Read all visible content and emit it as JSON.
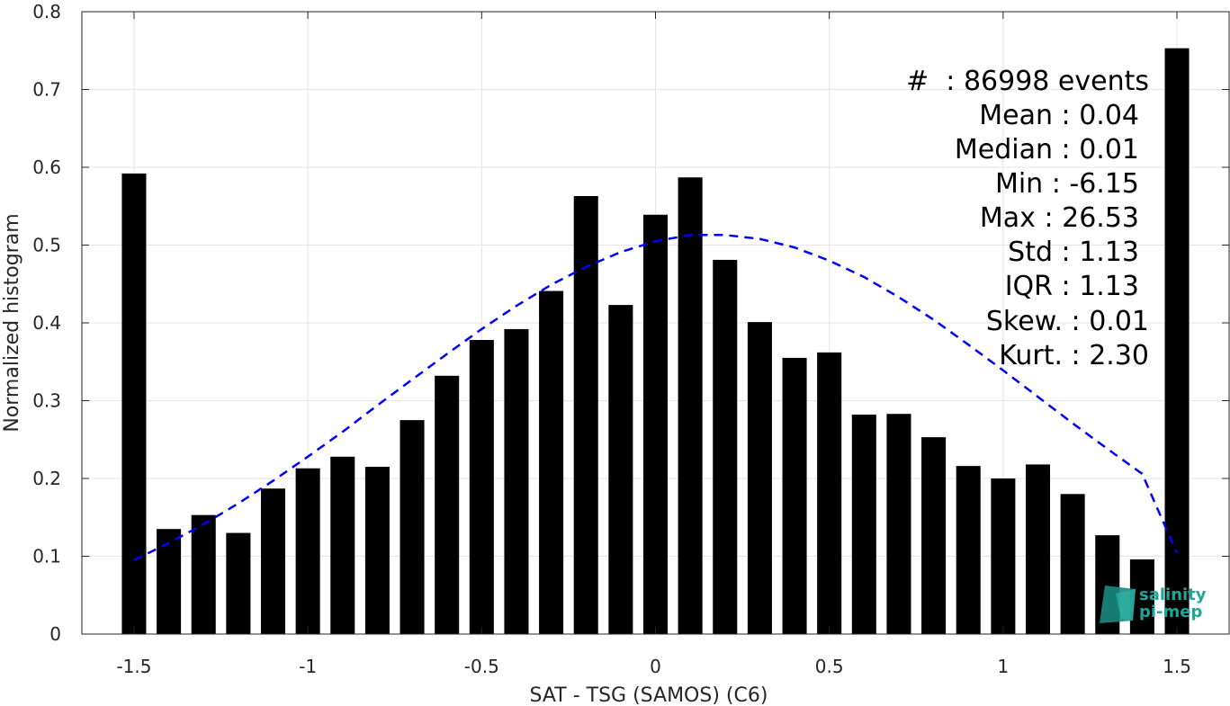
{
  "chart_data": {
    "type": "bar",
    "xlabel": "SAT - TSG (SAMOS) (C6)",
    "ylabel": "Normalized histogram",
    "xlim": [
      -1.65,
      1.65
    ],
    "ylim": [
      0,
      0.8
    ],
    "xticks": [
      -1.5,
      -1,
      -0.5,
      0,
      0.5,
      1,
      1.5
    ],
    "xtick_labels": [
      "-1.5",
      "-1",
      "-0.5",
      "0",
      "0.5",
      "1",
      "1.5"
    ],
    "yticks": [
      0,
      0.1,
      0.2,
      0.3,
      0.4,
      0.5,
      0.6,
      0.7,
      0.8
    ],
    "ytick_labels": [
      "0",
      "0.1",
      "0.2",
      "0.3",
      "0.4",
      "0.5",
      "0.6",
      "0.7",
      "0.8"
    ],
    "grid": true,
    "bar_width": 0.07,
    "bars": {
      "x": [
        -1.5,
        -1.4,
        -1.3,
        -1.2,
        -1.1,
        -1.0,
        -0.9,
        -0.8,
        -0.7,
        -0.6,
        -0.5,
        -0.4,
        -0.3,
        -0.2,
        -0.1,
        0.0,
        0.1,
        0.2,
        0.3,
        0.4,
        0.5,
        0.6,
        0.7,
        0.8,
        0.9,
        1.0,
        1.1,
        1.2,
        1.3,
        1.4,
        1.5
      ],
      "values": [
        0.592,
        0.135,
        0.153,
        0.13,
        0.187,
        0.213,
        0.228,
        0.215,
        0.275,
        0.332,
        0.378,
        0.392,
        0.441,
        0.563,
        0.423,
        0.539,
        0.587,
        0.481,
        0.401,
        0.355,
        0.362,
        0.282,
        0.283,
        0.253,
        0.216,
        0.2,
        0.218,
        0.18,
        0.127,
        0.096,
        0.753
      ]
    },
    "fit_curve": {
      "style": "dashed",
      "color": "#0000ff",
      "x": [
        -1.5,
        -1.4,
        -1.3,
        -1.2,
        -1.1,
        -1.0,
        -0.9,
        -0.8,
        -0.7,
        -0.6,
        -0.5,
        -0.4,
        -0.3,
        -0.2,
        -0.1,
        0.0,
        0.1,
        0.2,
        0.3,
        0.4,
        0.5,
        0.6,
        0.7,
        0.8,
        0.9,
        1.0,
        1.1,
        1.2,
        1.3,
        1.4,
        1.5
      ],
      "y": [
        0.095,
        0.117,
        0.141,
        0.168,
        0.197,
        0.228,
        0.26,
        0.294,
        0.327,
        0.36,
        0.392,
        0.422,
        0.449,
        0.472,
        0.491,
        0.505,
        0.513,
        0.513,
        0.508,
        0.497,
        0.48,
        0.459,
        0.433,
        0.404,
        0.372,
        0.339,
        0.305,
        0.271,
        0.238,
        0.206,
        0.104
      ]
    },
    "colors": {
      "bars": "#000000",
      "fit": "#0000ff",
      "grid": "#e5e5e5",
      "axis": "#262626"
    }
  },
  "stats": {
    "events": "#  : 86998 events",
    "mean": "Mean : 0.04",
    "median": "Median : 0.01",
    "min": "Min : -6.15",
    "max": "Max : 26.53",
    "std": "Std : 1.13",
    "iqr": "IQR : 1.13",
    "skew": "Skew. : 0.01",
    "kurt": "Kurt. : 2.30"
  },
  "logo": {
    "line1": "salinity",
    "line2": "pi-mep",
    "color": "#1fa69a"
  }
}
